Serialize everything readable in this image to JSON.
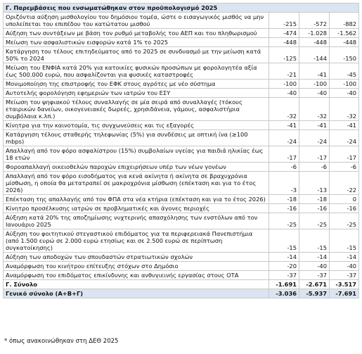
{
  "table": {
    "title": "Γ. Παρεμβάσεις που ενσωματώθηκαν στον προϋπολογισμό 2025",
    "rows": [
      [
        "Οριζόντια αύξηση μισθολογίου του δημόσιου τομέα, ώστε ο εισαγωγικός μισθός να μην υπολείπεται του επιπέδου του κατώτατου μισθού",
        "-215",
        "-572",
        "-882"
      ],
      [
        "Αύξηση των συντάξεων με βάση τον ρυθμό μεταβολής του ΑΕΠ και του πληθωρισμού",
        "-474",
        "-1.028",
        "-1.562"
      ],
      [
        "Μείωση των ασφαλιστικών εισφορών κατά 1% το 2025",
        "-448",
        "-448",
        "-448"
      ],
      [
        "Κατάργηση του τέλους επιτηδεύματος από το 2025 σε συνδυασμό με την μείωση κατά 50% το 2024",
        "-125",
        "-144",
        "-150"
      ],
      [
        "Μείωση του ΕΝΦΙΑ κατά 20% για κατοικίες φυσικών προσώπων με φορολογητέα αξία έως 500.000 ευρώ, που ασφαλίζονται για φυσικές καταστροφές",
        "-21",
        "-41",
        "-45"
      ],
      [
        "Μονιμοποίηση της επιστροφής του ΕΦΚ στους αγρότες με νέο σύστημα",
        "-100",
        "-100",
        "-100"
      ],
      [
        "Αυτοτελής φορολόγηση εφημεριών των ιατρών του ΕΣΥ",
        "-40",
        "-40",
        "-40"
      ],
      [
        "Μείωση του ψηφιακού τέλους συναλλαγής σε μία σειρά από συναλλαγές (τόκους εταιρικών δανείων, οικογενειακές δωρεές, χρησιδάνεια, γάμους, ασφαλιστήρια συμβόλαια κ.λπ.)",
        "-32",
        "-32",
        "-32"
      ],
      [
        "Κίνητρα για την καινοτομία, τις συγχωνεύσεις και τις εξαγορές",
        "-41",
        "-41",
        "-41"
      ],
      [
        "Κατάργηση τέλους σταθερής τηλεφωνίας (5%) για συνδέσεις με οπτική ίνα (≥100 mbps)",
        "-24",
        "-24",
        "-24"
      ],
      [
        "Απαλλαγή από τον φόρο ασφαλίστρου (15%) συμβολαίων υγείας για παιδιά ηλικίας έως 18 ετών",
        "-17",
        "-17",
        "-17"
      ],
      [
        "Φοροαπαλλαγή οικειοθελών παροχών επιχειρήσεων υπέρ των νέων γονέων",
        "-6",
        "-6",
        "-6"
      ],
      [
        "Απαλλαγή από τον φόρο εισοδήματος για κενά ακίνητα ή ακίνητα σε βραχυχρόνια μίσθωση, η οποία θα μετατραπεί σε μακροχρόνια μίσθωση (επέκταση και για το έτος 2026)",
        "-3",
        "-13",
        "-22"
      ],
      [
        "Επέκταση της απαλλαγής από τον ΦΠΑ στα νέα κτήρια (επέκταση και για το έτος 2026)",
        "-18",
        "-18",
        "0"
      ],
      [
        "Κίνητρο προσέλκυσης ιατρών σε προβληματικές και άγονες περιοχές",
        "-16",
        "-16",
        "-16"
      ],
      [
        "Αύξηση κατά 20% της αποζημίωσης νυχτερινής απασχόλησης των ενστόλων από τον Ιανουάριο 2025",
        "-25",
        "-25",
        "-25"
      ],
      [
        "Αύξηση του φοιτητικού στεγαστικού επιδόματος για τα περιφερειακά Πανεπιστήμια (από 1.500 ευρώ σε 2.000 ευρώ ετησίως και σε 2.500 ευρώ σε περίπτωση συγκατοίκησης)",
        "-15",
        "-15",
        "-15"
      ],
      [
        "Αύξηση των αποδοχών των σπουδαστών στρατιωτικών σχολών",
        "-14",
        "-14",
        "-14"
      ],
      [
        "Αναμόρφωση του κινήτρου επίτευξης στόχων στο Δημόσιο",
        "-20",
        "-40",
        "-40"
      ],
      [
        "Αναμόρφωση του επιδόματος επικίνδυνης και ανθυγιεινής εργασίας στους ΟΤΑ",
        "-37",
        "-37",
        "-37"
      ]
    ],
    "total": [
      "Γ. Σύνολο",
      "-1.691",
      "-2.671",
      "-3.517"
    ],
    "grand_total": [
      "Γενικό σύνολο (Α+Β+Γ)",
      "-3.036",
      "-5.937",
      "-7.691"
    ]
  },
  "footnote": "* όπως ανακοινώθηκαν στη ΔΕΘ 2025"
}
